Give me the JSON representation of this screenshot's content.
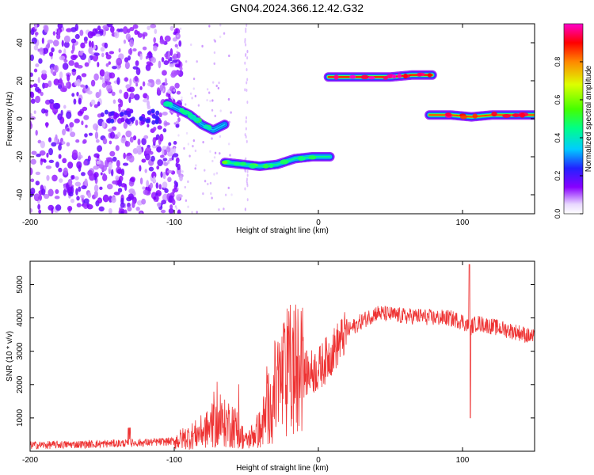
{
  "title": "GN04.2024.366.12.42.G32",
  "chart_data": [
    {
      "type": "heatmap",
      "xlabel": "Height of straight line (km)",
      "ylabel": "Frequency (Hz)",
      "xlim": [
        -200,
        150
      ],
      "ylim": [
        -50,
        50
      ],
      "x_ticks": [
        -200,
        -100,
        0,
        100
      ],
      "y_ticks": [
        -40,
        -20,
        0,
        20,
        40
      ],
      "colorbar": {
        "label": "Normalized spectral amplitude",
        "range": [
          0,
          1
        ],
        "ticks": [
          0,
          0.2,
          0.4,
          0.6,
          0.8
        ]
      },
      "traces": [
        {
          "x_start": -105,
          "x_end": -65,
          "y": [
            8,
            5,
            2,
            -3,
            -6,
            -3
          ],
          "amplitude": 0.35
        },
        {
          "x_start": -65,
          "x_end": 8,
          "y": [
            -23,
            -24,
            -25,
            -24,
            -21,
            -20,
            -20
          ],
          "amplitude": 0.45
        },
        {
          "x_start": 7,
          "x_end": 79,
          "y": [
            22,
            22,
            22,
            22,
            23,
            23
          ],
          "amplitude": 0.9
        },
        {
          "x_start": 77,
          "x_end": 150,
          "y": [
            2,
            2,
            1,
            2,
            2,
            2
          ],
          "amplitude": 0.85
        }
      ]
    },
    {
      "type": "line",
      "xlabel": "Height of straight line (km)",
      "ylabel": "SNR (10 * v/v)",
      "xlim": [
        -200,
        150
      ],
      "ylim": [
        0,
        5700
      ],
      "x_ticks": [
        -200,
        -100,
        0,
        100
      ],
      "y_ticks": [
        1000,
        2000,
        3000,
        4000,
        5000
      ],
      "series": [
        {
          "color": "#ee3333",
          "x": [
            -200,
            -150,
            -120,
            -100,
            -85,
            -70,
            -60,
            -50,
            -40,
            -30,
            -20,
            -10,
            0,
            10,
            20,
            30,
            40,
            50,
            60,
            70,
            80,
            90,
            100,
            105,
            110,
            120,
            130,
            140,
            150
          ],
          "y": [
            180,
            220,
            260,
            300,
            500,
            800,
            850,
            300,
            700,
            1800,
            2400,
            2300,
            2450,
            3000,
            3600,
            3900,
            4150,
            4100,
            4050,
            4050,
            4000,
            4000,
            3900,
            3700,
            3850,
            3750,
            3650,
            3550,
            3400
          ]
        }
      ]
    }
  ]
}
